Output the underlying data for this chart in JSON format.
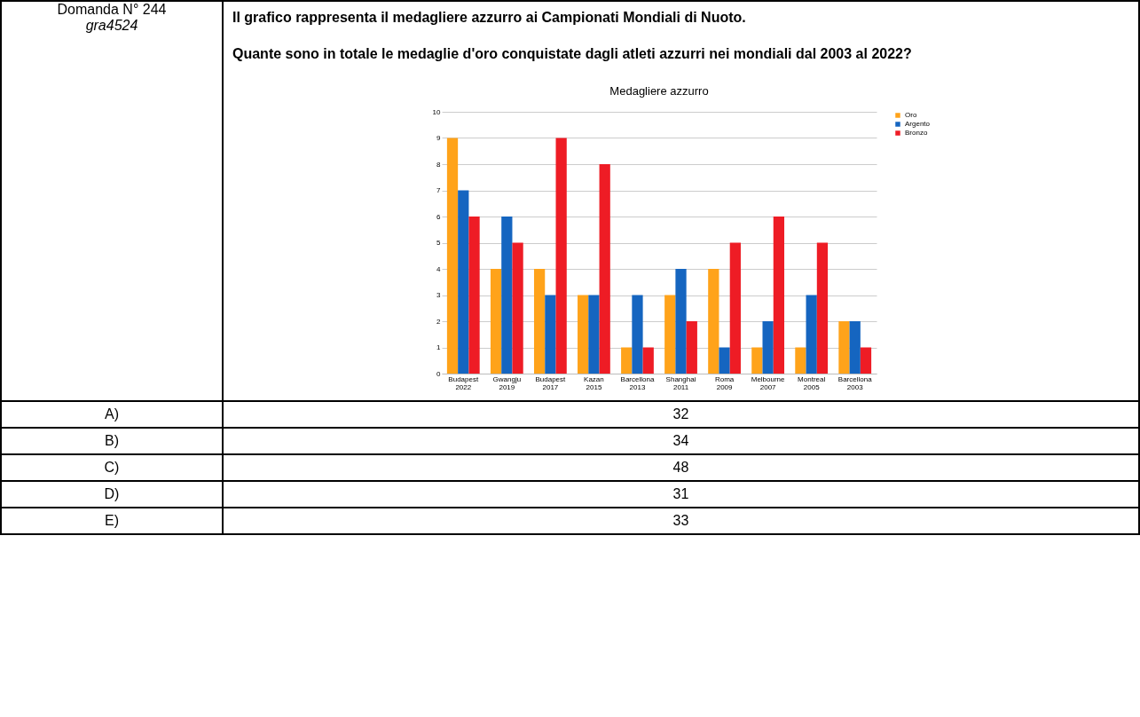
{
  "chart_data": {
    "type": "bar",
    "title": "Medagliere azzurro",
    "categories": [
      "Budapest 2022",
      "Gwangju 2019",
      "Budapest 2017",
      "Kazan 2015",
      "Barcellona 2013",
      "Shanghai 2011",
      "Roma 2009",
      "Melbourne 2007",
      "Montreal 2005",
      "Barcellona 2003"
    ],
    "series": [
      {
        "name": "Oro",
        "color": "#ffa31a",
        "values": [
          9,
          4,
          4,
          3,
          1,
          3,
          4,
          1,
          1,
          2
        ]
      },
      {
        "name": "Argento",
        "color": "#1565c0",
        "values": [
          7,
          6,
          3,
          3,
          3,
          4,
          1,
          2,
          3,
          2
        ]
      },
      {
        "name": "Bronzo",
        "color": "#ee1c25",
        "values": [
          6,
          5,
          9,
          8,
          1,
          2,
          5,
          6,
          5,
          1
        ]
      }
    ],
    "ylim": [
      0,
      10
    ],
    "yticks": [
      0,
      1,
      2,
      3,
      4,
      5,
      6,
      7,
      8,
      9,
      10
    ],
    "grid": "y",
    "legend": "right",
    "annotations": [
      "Domanda N° 244",
      "gra4524",
      "Il grafico rappresenta il medagliere azzurro ai Campionati Mondiali di Nuoto.",
      "Quante sono in totale le medaglie d'oro conquistate dagli atleti azzurri nei mondiali dal 2003 al 2022?",
      "A)",
      "32",
      "B)",
      "34",
      "C)",
      "48",
      "D)",
      "31",
      "E)",
      "33"
    ]
  }
}
